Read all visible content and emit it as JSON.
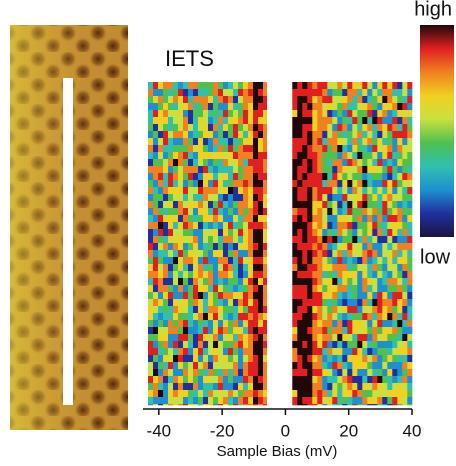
{
  "chart_data": {
    "type": "heatmap",
    "title": "IETS",
    "xlabel": "Sample Bias (mV)",
    "xlim": [
      -45,
      40
    ],
    "xticks": [
      -40,
      -20,
      0,
      20,
      40
    ],
    "colorbar_labels": [
      "high",
      "low"
    ],
    "colormap": [
      "#1a1440",
      "#2030a0",
      "#1e90d0",
      "#30c0b0",
      "#50c050",
      "#c8e040",
      "#f0d020",
      "#f08020",
      "#e02020",
      "#200808"
    ]
  }
}
